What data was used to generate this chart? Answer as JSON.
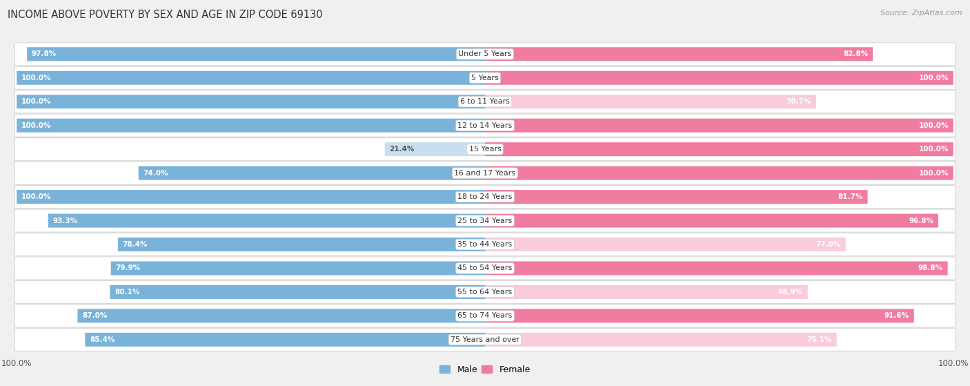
{
  "title": "INCOME ABOVE POVERTY BY SEX AND AGE IN ZIP CODE 69130",
  "source": "Source: ZipAtlas.com",
  "categories": [
    "Under 5 Years",
    "5 Years",
    "6 to 11 Years",
    "12 to 14 Years",
    "15 Years",
    "16 and 17 Years",
    "18 to 24 Years",
    "25 to 34 Years",
    "35 to 44 Years",
    "45 to 54 Years",
    "55 to 64 Years",
    "65 to 74 Years",
    "75 Years and over"
  ],
  "male_values": [
    97.8,
    100.0,
    100.0,
    100.0,
    21.4,
    74.0,
    100.0,
    93.3,
    78.4,
    79.9,
    80.1,
    87.0,
    85.4
  ],
  "female_values": [
    82.8,
    100.0,
    70.7,
    100.0,
    100.0,
    100.0,
    81.7,
    96.8,
    77.0,
    98.8,
    68.9,
    91.6,
    75.1
  ],
  "male_color": "#7ab3d9",
  "female_color": "#f07ca0",
  "male_color_light": "#c8dff0",
  "female_color_light": "#f9ccd9",
  "background_color": "#f0f0f0",
  "bar_row_bg": "#ffffff",
  "max_value": 100.0,
  "title_fontsize": 10.5,
  "label_fontsize": 8.0,
  "value_fontsize": 7.5,
  "tick_fontsize": 8.5,
  "source_fontsize": 8.0,
  "legend_fontsize": 9.0
}
